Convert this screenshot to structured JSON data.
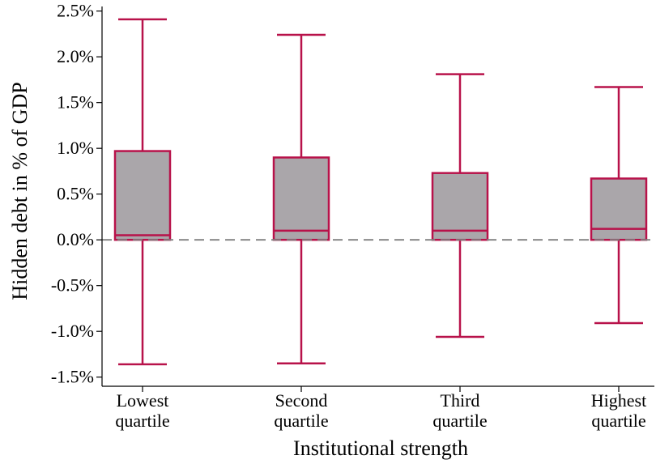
{
  "chart_data": {
    "type": "box",
    "title": "",
    "xlabel": "Institutional strength",
    "ylabel": "Hidden debt in % of GDP",
    "ylim": [
      -1.6,
      2.55
    ],
    "yticks": [
      -1.5,
      -1.0,
      -0.5,
      0.0,
      0.5,
      1.0,
      1.5,
      2.0,
      2.5
    ],
    "ytick_labels": [
      "-1.5%",
      "-1.0%",
      "-0.5%",
      "0.0%",
      "0.5%",
      "1.0%",
      "1.5%",
      "2.0%",
      "2.5%"
    ],
    "reference_line": {
      "y": 0.0,
      "style": "dashed",
      "color": "#7f7f7f"
    },
    "categories": [
      {
        "label_line1": "Lowest",
        "label_line2": "quartile",
        "whisker_low": -1.36,
        "q1": 0.0,
        "median": 0.05,
        "q3": 0.97,
        "whisker_high": 2.41
      },
      {
        "label_line1": "Second",
        "label_line2": "quartile",
        "whisker_low": -1.35,
        "q1": 0.0,
        "median": 0.1,
        "q3": 0.9,
        "whisker_high": 2.24
      },
      {
        "label_line1": "Third",
        "label_line2": "quartile",
        "whisker_low": -1.06,
        "q1": 0.0,
        "median": 0.1,
        "q3": 0.73,
        "whisker_high": 1.81
      },
      {
        "label_line1": "Highest",
        "label_line2": "quartile",
        "whisker_low": -0.91,
        "q1": 0.0,
        "median": 0.12,
        "q3": 0.67,
        "whisker_high": 1.67
      }
    ],
    "colors": {
      "box_fill": "#aaa6aa",
      "box_stroke": "#b8124a",
      "axis": "#000000"
    },
    "grid": false,
    "legend": "none"
  }
}
